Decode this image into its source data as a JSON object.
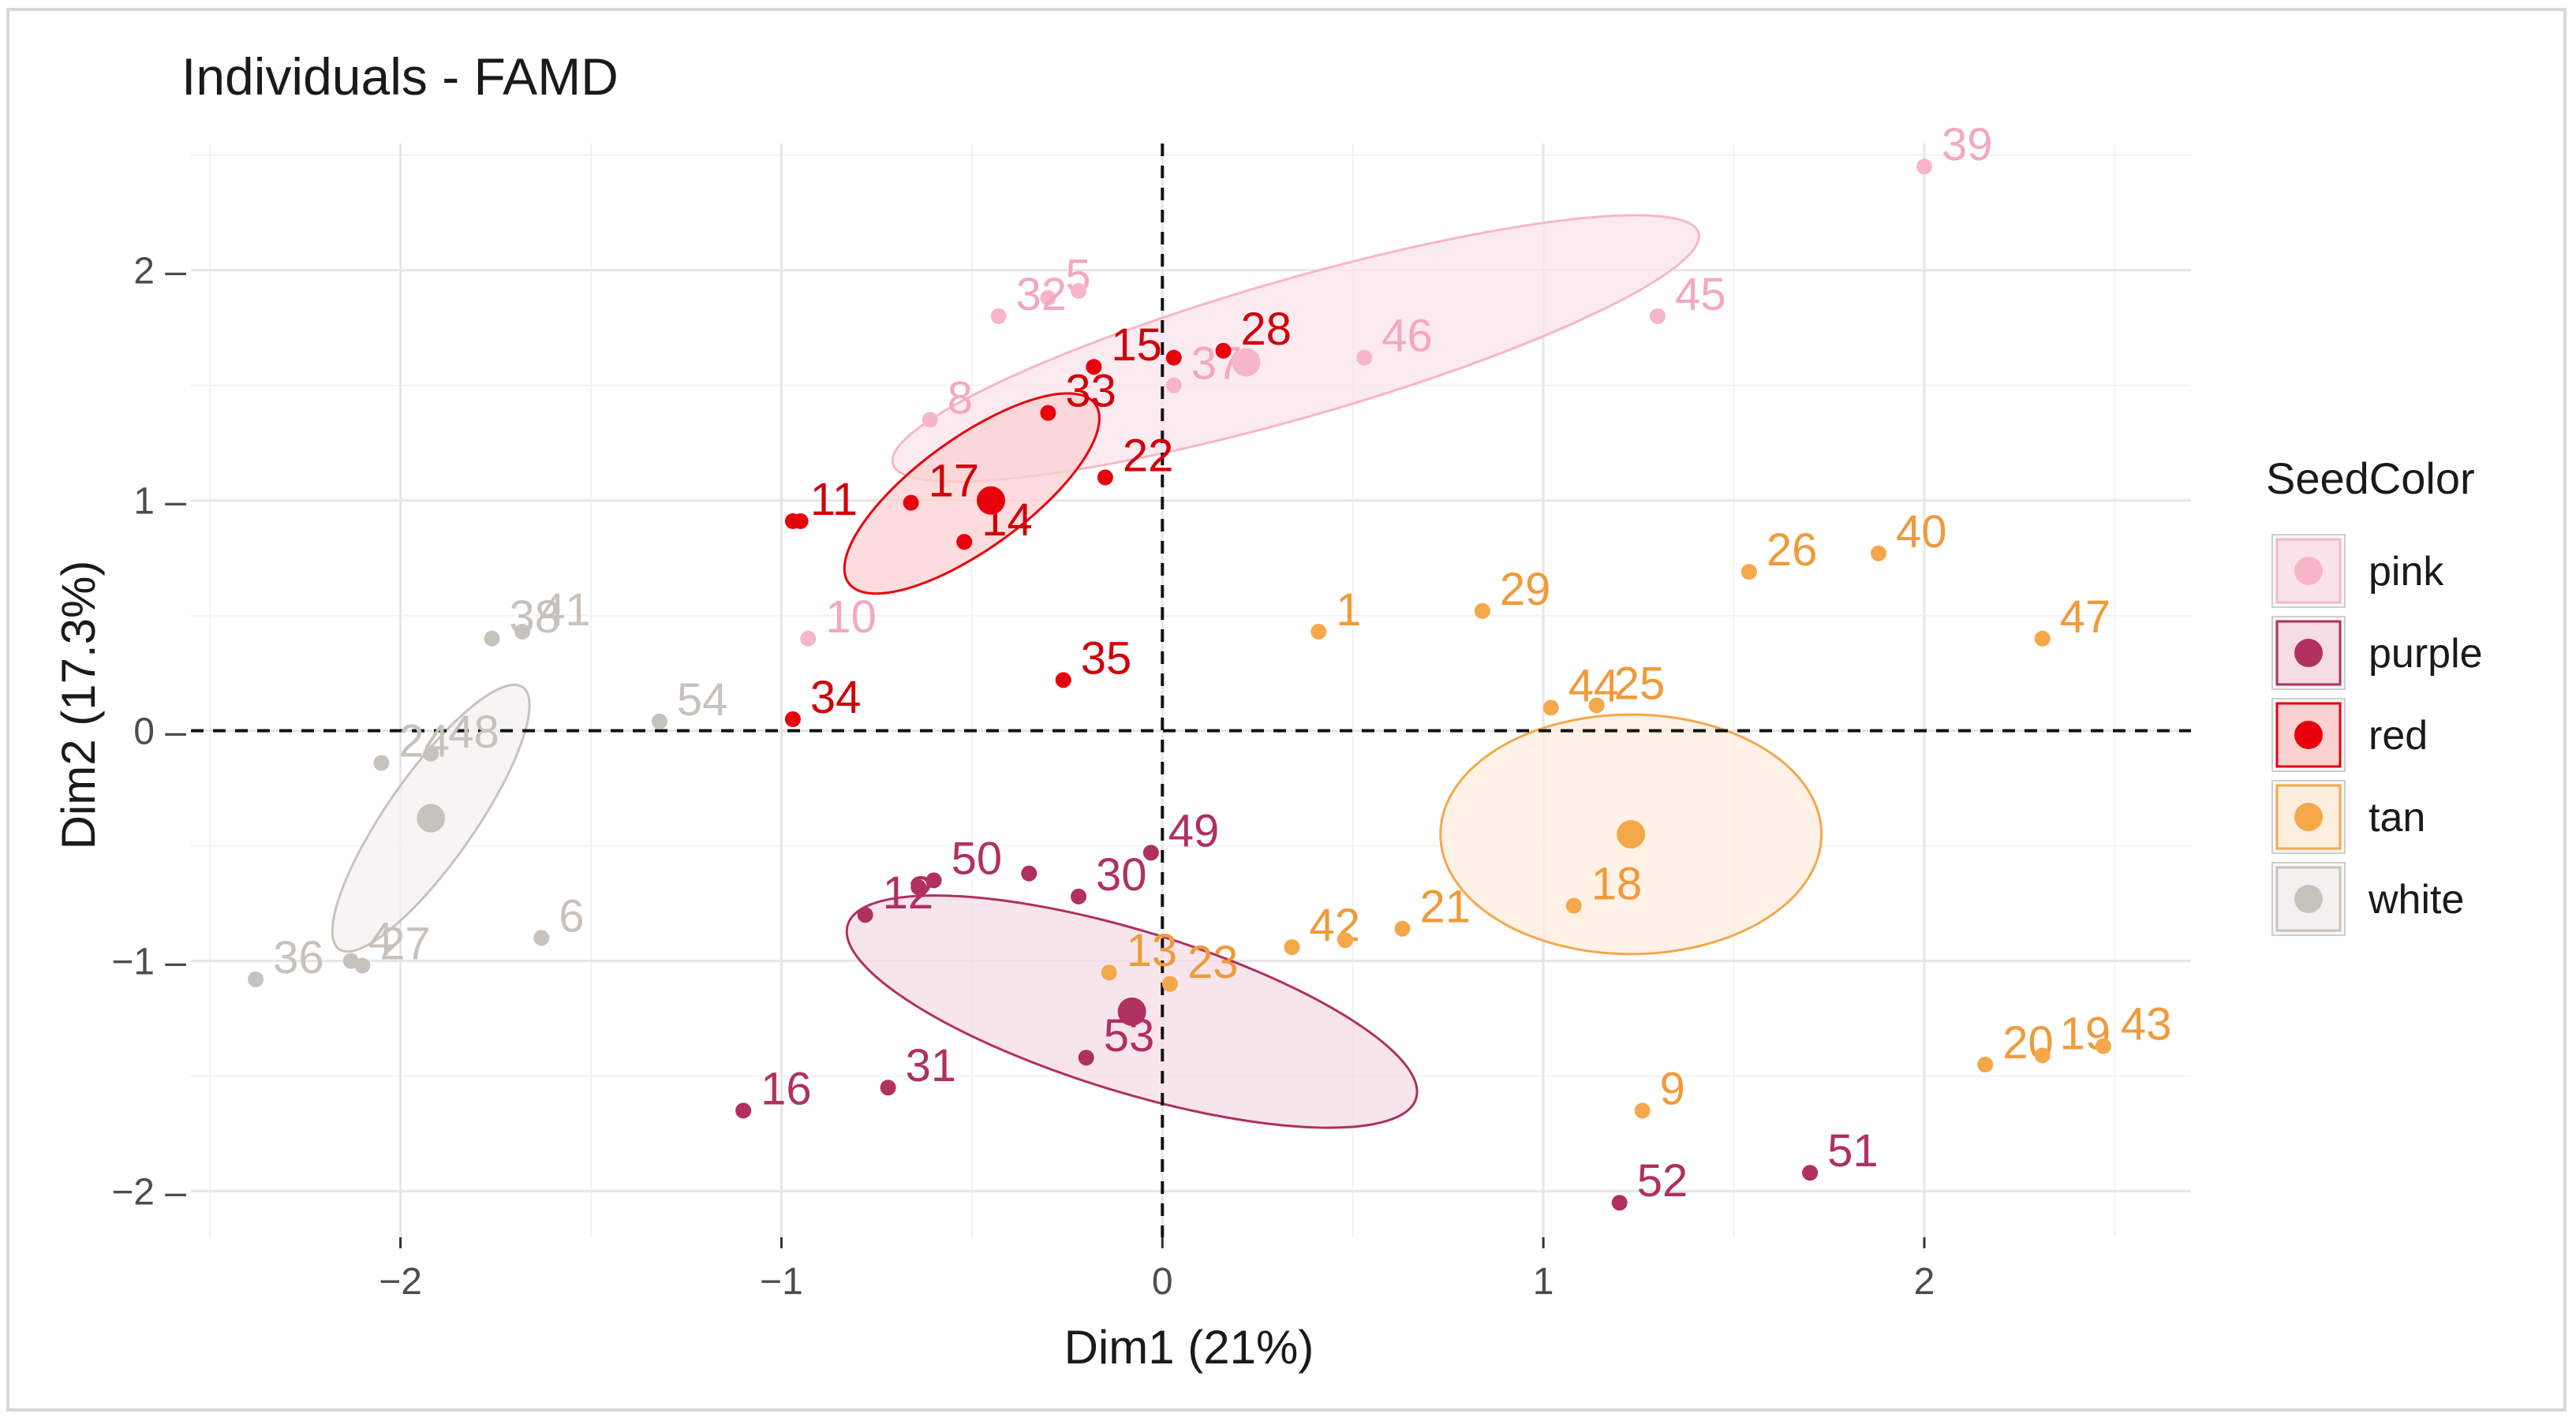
{
  "chart_data": {
    "type": "scatter",
    "title": "Individuals - FAMD",
    "xlabel": "Dim1 (21%)",
    "ylabel": "Dim2 (17.3%)",
    "xlim": [
      -2.55,
      2.7
    ],
    "ylim": [
      -2.2,
      2.55
    ],
    "xticks": [
      -2,
      -1,
      0,
      1,
      2
    ],
    "yticks": [
      -2,
      -1,
      0,
      1,
      2
    ],
    "xtick_labels": [
      "−2",
      "−1",
      "0",
      "1",
      "2"
    ],
    "ytick_labels": [
      "−2 –",
      "−1 –",
      "0 –",
      "1 –",
      "2 –"
    ],
    "reference_lines": {
      "x": 0,
      "y": 0,
      "style": "dashed"
    },
    "grid": true,
    "legend": {
      "title": "SeedColor",
      "position": "right",
      "entries": [
        {
          "name": "pink",
          "color": "#f7b6c8"
        },
        {
          "name": "purple",
          "color": "#b03060"
        },
        {
          "name": "red",
          "color": "#e8000b"
        },
        {
          "name": "tan",
          "color": "#f4a84a"
        },
        {
          "name": "white",
          "color": "#c8c2bc"
        }
      ]
    },
    "series": [
      {
        "name": "pink",
        "color": "#f7b6c8",
        "label_color": "#f4a8be",
        "fill": "#fbe3ec",
        "centroid": [
          0.22,
          1.6
        ],
        "ellipse": {
          "cx": 0.35,
          "cy": 1.66,
          "rx": 1.1,
          "ry": 0.3,
          "angle": 16
        },
        "points": [
          {
            "label": "5",
            "x": -0.3,
            "y": 1.88
          },
          {
            "label": "",
            "x": -0.22,
            "y": 1.91
          },
          {
            "label": "32",
            "x": -0.43,
            "y": 1.8
          },
          {
            "label": "8",
            "x": -0.61,
            "y": 1.35
          },
          {
            "label": "37",
            "x": 0.03,
            "y": 1.5
          },
          {
            "label": "46",
            "x": 0.53,
            "y": 1.62
          },
          {
            "label": "45",
            "x": 1.3,
            "y": 1.8
          },
          {
            "label": "39",
            "x": 2.0,
            "y": 2.45
          },
          {
            "label": "10",
            "x": -0.93,
            "y": 0.4
          }
        ]
      },
      {
        "name": "purple",
        "color": "#b03060",
        "label_color": "#b03060",
        "fill": "#f5dce5",
        "centroid": [
          -0.08,
          -1.22
        ],
        "ellipse": {
          "cx": -0.08,
          "cy": -1.22,
          "rx": 0.78,
          "ry": 0.35,
          "angle": -17
        },
        "points": [
          {
            "label": "49",
            "x": -0.03,
            "y": -0.53
          },
          {
            "label": "50",
            "x": -0.6,
            "y": -0.65
          },
          {
            "label": "",
            "x": -0.64,
            "y": -0.68
          },
          {
            "label": "",
            "x": -0.35,
            "y": -0.62
          },
          {
            "label": "30",
            "x": -0.22,
            "y": -0.72
          },
          {
            "label": "12",
            "x": -0.78,
            "y": -0.8
          },
          {
            "label": "31",
            "x": -0.72,
            "y": -1.55
          },
          {
            "label": "53",
            "x": -0.2,
            "y": -1.42
          },
          {
            "label": "16",
            "x": -1.1,
            "y": -1.65
          },
          {
            "label": "52",
            "x": 1.2,
            "y": -2.05
          },
          {
            "label": "51",
            "x": 1.7,
            "y": -1.92
          }
        ]
      },
      {
        "name": "red",
        "color": "#e8000b",
        "label_color": "#d0000a",
        "fill": "#fbd0d0",
        "centroid": [
          -0.45,
          1.0
        ],
        "ellipse": {
          "cx": -0.5,
          "cy": 1.03,
          "rx": 0.4,
          "ry": 0.24,
          "angle": 36
        },
        "points": [
          {
            "label": "15",
            "x": -0.18,
            "y": 1.58
          },
          {
            "label": "",
            "x": 0.03,
            "y": 1.62
          },
          {
            "label": "28",
            "x": 0.16,
            "y": 1.65
          },
          {
            "label": "33",
            "x": -0.3,
            "y": 1.38
          },
          {
            "label": "17",
            "x": -0.66,
            "y": 0.99
          },
          {
            "label": "22",
            "x": -0.15,
            "y": 1.1
          },
          {
            "label": "14",
            "x": -0.52,
            "y": 0.82
          },
          {
            "label": "11",
            "x": -0.97,
            "y": 0.91
          },
          {
            "label": "",
            "x": -0.95,
            "y": 0.91
          },
          {
            "label": "34",
            "x": -0.97,
            "y": 0.05
          },
          {
            "label": "35",
            "x": -0.26,
            "y": 0.22
          }
        ]
      },
      {
        "name": "tan",
        "color": "#f4a84a",
        "label_color": "#f09a3a",
        "fill": "#fdeedd",
        "centroid": [
          1.23,
          -0.45
        ],
        "ellipse": {
          "cx": 1.23,
          "cy": -0.45,
          "rx": 0.5,
          "ry": 0.52,
          "angle": 0
        },
        "points": [
          {
            "label": "40",
            "x": 1.88,
            "y": 0.77
          },
          {
            "label": "26",
            "x": 1.54,
            "y": 0.69
          },
          {
            "label": "47",
            "x": 2.31,
            "y": 0.4
          },
          {
            "label": "29",
            "x": 0.84,
            "y": 0.52
          },
          {
            "label": "1",
            "x": 0.41,
            "y": 0.43
          },
          {
            "label": "25",
            "x": 1.14,
            "y": 0.11
          },
          {
            "label": "44",
            "x": 1.02,
            "y": 0.1
          },
          {
            "label": "42",
            "x": 0.34,
            "y": -0.94
          },
          {
            "label": "",
            "x": 0.48,
            "y": -0.91
          },
          {
            "label": "21",
            "x": 0.63,
            "y": -0.86
          },
          {
            "label": "18",
            "x": 1.08,
            "y": -0.76
          },
          {
            "label": "13",
            "x": -0.14,
            "y": -1.05
          },
          {
            "label": "23",
            "x": 0.02,
            "y": -1.1
          },
          {
            "label": "9",
            "x": 1.26,
            "y": -1.65
          },
          {
            "label": "20",
            "x": 2.16,
            "y": -1.45
          },
          {
            "label": "19",
            "x": 2.31,
            "y": -1.41
          },
          {
            "label": "43",
            "x": 2.47,
            "y": -1.37
          }
        ]
      },
      {
        "name": "white",
        "color": "#c8c2bc",
        "label_color": "#c8c2bc",
        "fill": "#f3f1ef",
        "centroid": [
          -1.92,
          -0.38
        ],
        "ellipse": {
          "cx": -1.92,
          "cy": -0.38,
          "rx": 0.42,
          "ry": 0.19,
          "angle": 55
        },
        "points": [
          {
            "label": "41",
            "x": -1.68,
            "y": 0.43
          },
          {
            "label": "38",
            "x": -1.76,
            "y": 0.4
          },
          {
            "label": "54",
            "x": -1.32,
            "y": 0.04
          },
          {
            "label": "48",
            "x": -1.92,
            "y": -0.1
          },
          {
            "label": "24",
            "x": -2.05,
            "y": -0.14
          },
          {
            "label": "6",
            "x": -1.63,
            "y": -0.9
          },
          {
            "label": "27",
            "x": -2.1,
            "y": -1.02
          },
          {
            "label": "4",
            "x": -2.13,
            "y": -1.0
          },
          {
            "label": "36",
            "x": -2.38,
            "y": -1.08
          }
        ]
      }
    ]
  }
}
